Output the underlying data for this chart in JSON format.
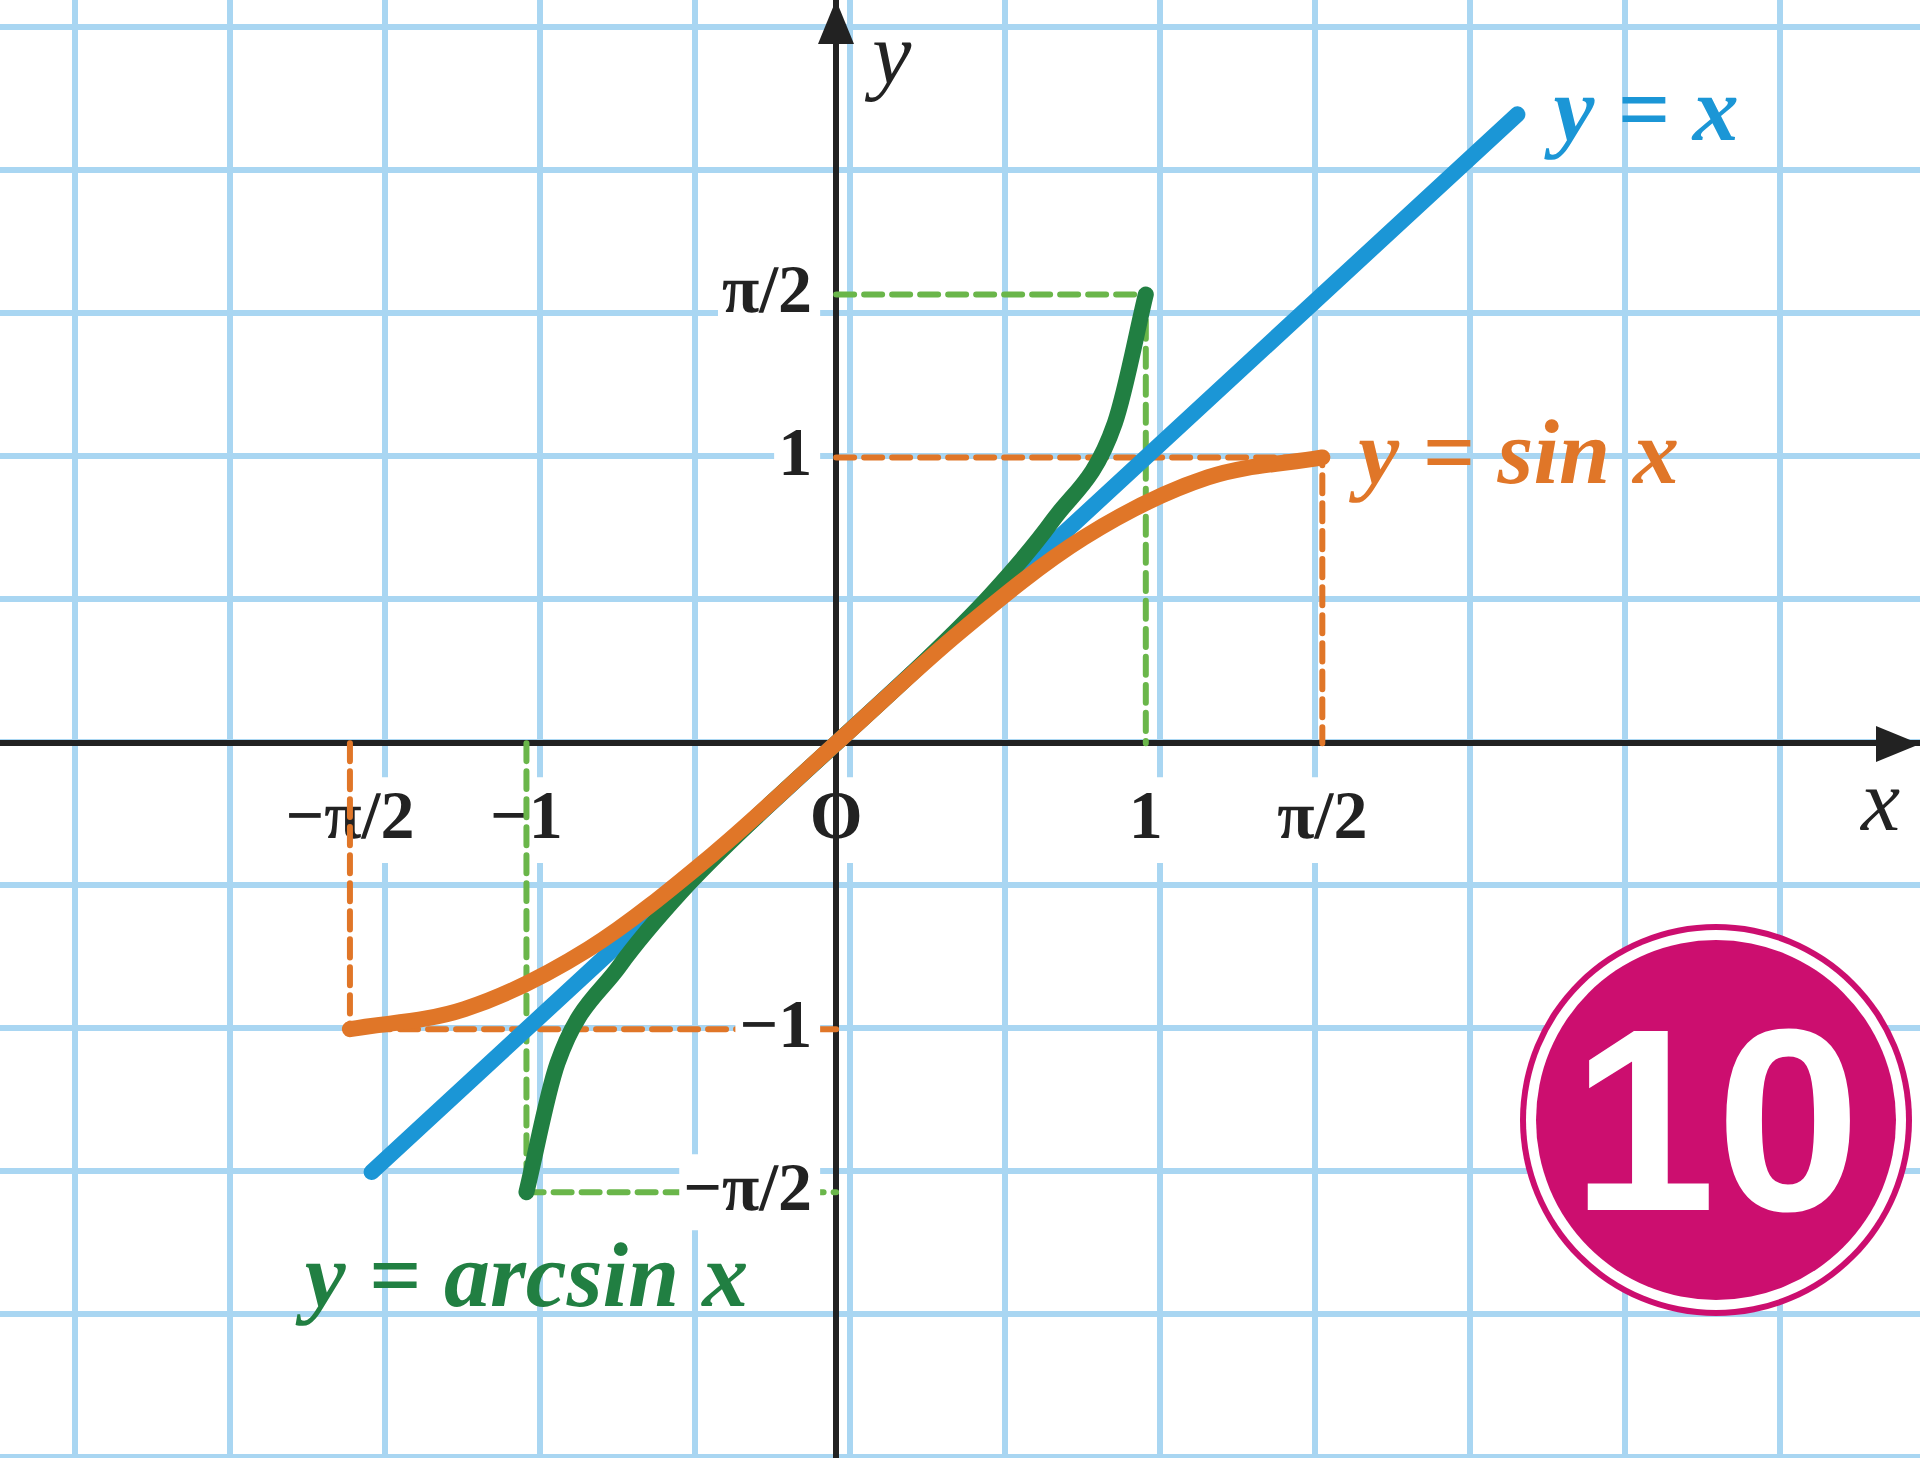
{
  "chart_data": {
    "type": "line",
    "xlabel": "x",
    "ylabel": "y",
    "annotations": [
      "10"
    ],
    "xlim": [
      -2.7,
      3.5
    ],
    "ylim": [
      -2.5,
      2.6
    ],
    "xticks": [
      {
        "value": -1.57,
        "label": "−π/2"
      },
      {
        "value": -1,
        "label": "−1"
      },
      {
        "value": 0,
        "label": "O"
      },
      {
        "value": 1,
        "label": "1"
      },
      {
        "value": 1.57,
        "label": "π/2"
      }
    ],
    "yticks": [
      {
        "value": -1.57,
        "label": "−π/2"
      },
      {
        "value": -1,
        "label": "−1"
      },
      {
        "value": 1,
        "label": "1"
      },
      {
        "value": 1.57,
        "label": "π/2"
      }
    ],
    "grid": false,
    "legend": false,
    "marker": "none",
    "series": [
      {
        "name": "y = sin x",
        "color": "#e07628",
        "x": [
          -1.57,
          -1.2,
          -0.8,
          -0.4,
          0,
          0.4,
          0.8,
          1.2,
          1.57
        ],
        "values": [
          -1,
          -0.93,
          -0.72,
          -0.39,
          0,
          0.39,
          0.72,
          0.93,
          1
        ]
      },
      {
        "name": "y = arcsin x",
        "color": "#217f42",
        "x": [
          -1,
          -0.9,
          -0.7,
          -0.5,
          -0.25,
          0,
          0.25,
          0.5,
          0.7,
          0.9,
          1
        ],
        "values": [
          -1.57,
          -1.12,
          -0.78,
          -0.52,
          -0.25,
          0,
          0.25,
          0.52,
          0.78,
          1.12,
          1.57
        ]
      },
      {
        "name": "y = x",
        "color": "#1b96d6",
        "x": [
          -1.5,
          2.2
        ],
        "values": [
          -1.5,
          2.2
        ]
      },
      {
        "color": "#e07628",
        "line_style": "dashed",
        "x": [
          0,
          1.57,
          1.57,
          null,
          -1.57,
          -1.57,
          0
        ],
        "values": [
          1,
          1,
          0,
          null,
          0,
          -1,
          -1
        ]
      },
      {
        "color": "#6ab64a",
        "line_style": "dashed",
        "x": [
          0,
          1,
          1,
          null,
          -1,
          -1,
          0
        ],
        "values": [
          1.57,
          1.57,
          0,
          null,
          0,
          -1.57,
          -1.57
        ]
      }
    ]
  }
}
